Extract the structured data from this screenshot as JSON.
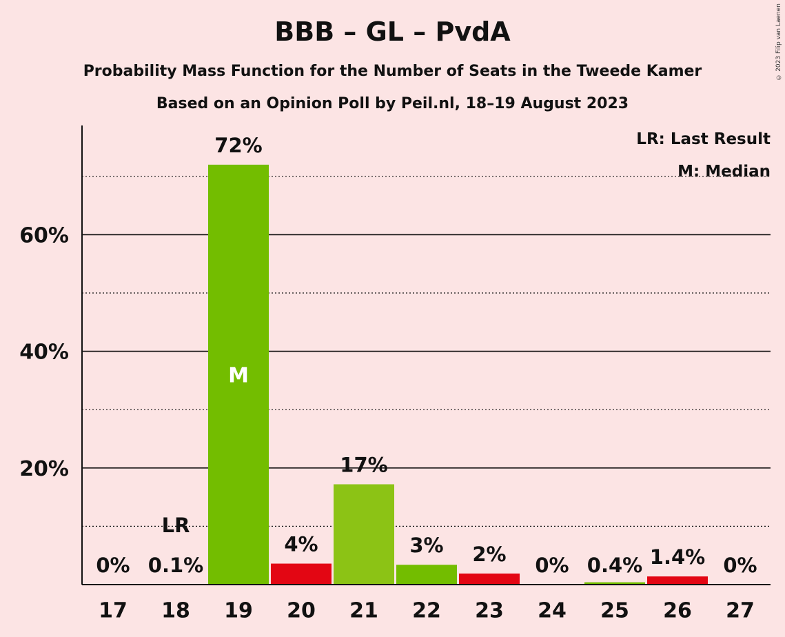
{
  "title": "BBB – GL – PvdA",
  "subtitle": "Probability Mass Function for the Number of Seats in the Tweede Kamer",
  "subtitle2": "Based on an Opinion Poll by Peil.nl, 18–19 August 2023",
  "copyright": "© 2023 Filip van Laenen",
  "legend": {
    "last_result": "LR: Last Result",
    "median": "M: Median"
  },
  "colors": {
    "background": "#fce4e4",
    "green": "#73bd00",
    "lightgreen": "#8cc315",
    "red": "#e30613",
    "text": "#111111"
  },
  "chart_data": {
    "type": "bar",
    "categories": [
      "17",
      "18",
      "19",
      "20",
      "21",
      "22",
      "23",
      "24",
      "25",
      "26",
      "27"
    ],
    "values": [
      0,
      0.1,
      72,
      3.6,
      17.2,
      3.4,
      1.9,
      0,
      0.4,
      1.4,
      0
    ],
    "labels": [
      "0%",
      "0.1%",
      "72%",
      "4%",
      "17%",
      "3%",
      "2%",
      "0%",
      "0.4%",
      "1.4%",
      "0%"
    ],
    "bar_colors": [
      "green",
      "green",
      "green",
      "red",
      "lightgreen",
      "green",
      "red",
      "green",
      "green",
      "red",
      "green"
    ],
    "y_ticks": [
      20,
      40,
      60
    ],
    "y_tick_labels": [
      "20%",
      "40%",
      "60%"
    ],
    "ylim": [
      0,
      78
    ],
    "median_category": "19",
    "median_marker": "M",
    "last_result_category": "18",
    "last_result_marker": "LR"
  }
}
